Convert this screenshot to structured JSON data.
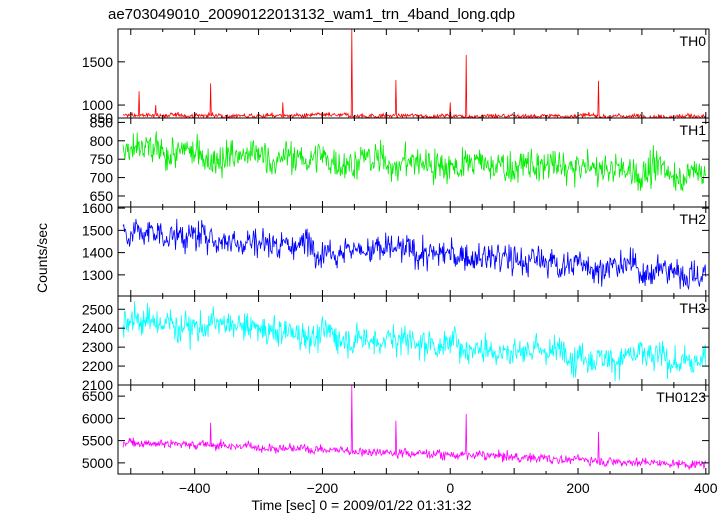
{
  "chart_data": {
    "type": "line",
    "title": "ae703049010_20090122013132_wam1_trn_4band_long.qdp",
    "xlabel": "Time [sec] 0 = 2009/01/22 01:31:32",
    "ylabel": "Counts/sec",
    "xlim": [
      -520,
      405
    ],
    "xticks": [
      -400,
      -200,
      0,
      200,
      400
    ],
    "panels": [
      {
        "name": "TH0",
        "color": "#ff0000",
        "ylim": [
          850,
          1880
        ],
        "yticks": [
          850,
          1000,
          1500
        ],
        "baseline_start": 880,
        "baseline_end": 870,
        "noise": 18,
        "spikes": [
          [
            -487,
            1160
          ],
          [
            -471,
            880
          ],
          [
            -461,
            1000
          ],
          [
            -375,
            1250
          ],
          [
            -262,
            1030
          ],
          [
            -154,
            1880
          ],
          [
            -85,
            1290
          ],
          [
            0,
            1030
          ],
          [
            25,
            1580
          ],
          [
            71,
            900
          ],
          [
            232,
            1280
          ]
        ]
      },
      {
        "name": "TH1",
        "color": "#00ee00",
        "ylim": [
          620,
          862
        ],
        "yticks": [
          650,
          700,
          750,
          800,
          850
        ],
        "baseline_start": 768,
        "baseline_end": 712,
        "noise": 30,
        "spikes": []
      },
      {
        "name": "TH2",
        "color": "#0000ff",
        "ylim": [
          1205,
          1605
        ],
        "yticks": [
          1300,
          1400,
          1500,
          1600
        ],
        "baseline_start": 1495,
        "baseline_end": 1305,
        "noise": 45,
        "spikes": []
      },
      {
        "name": "TH3",
        "color": "#00ffff",
        "ylim": [
          2100,
          2570
        ],
        "yticks": [
          2100,
          2200,
          2300,
          2400,
          2500
        ],
        "baseline_start": 2445,
        "baseline_end": 2215,
        "noise": 55,
        "spikes": []
      },
      {
        "name": "TH0123",
        "color": "#ff00ff",
        "ylim": [
          4750,
          6750
        ],
        "yticks": [
          5000,
          5500,
          6000,
          6500
        ],
        "baseline_start": 5480,
        "baseline_end": 4960,
        "noise": 70,
        "spikes": [
          [
            -375,
            5900
          ],
          [
            -154,
            6750
          ],
          [
            -85,
            5950
          ],
          [
            25,
            6100
          ],
          [
            232,
            5700
          ]
        ]
      }
    ]
  }
}
